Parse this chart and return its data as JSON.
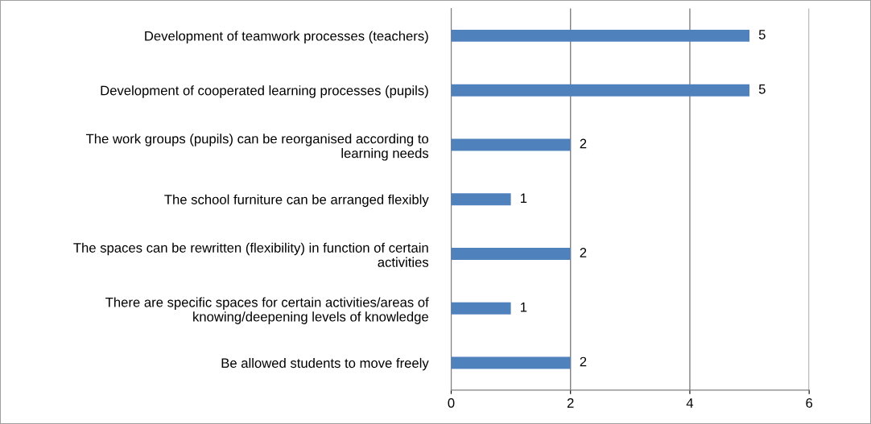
{
  "chart_data": {
    "type": "bar",
    "orientation": "horizontal",
    "categories": [
      "Development of teamwork processes (teachers)",
      "Development of cooperated learning processes (pupils)",
      "The work groups (pupils) can be reorganised according to\nlearning needs",
      "The school furniture can be arranged flexibly",
      "The spaces can be rewritten (flexibility) in function of certain\nactivities",
      "There are specific spaces for certain activities/areas of\nknowing/deepening levels of knowledge",
      "Be allowed students to move freely"
    ],
    "values": [
      5,
      5,
      2,
      1,
      2,
      1,
      2
    ],
    "color": "#4f81bd",
    "xlim": [
      0,
      6
    ],
    "xticks": [
      0,
      2,
      4,
      6
    ],
    "grid": "x",
    "data_labels": true,
    "legend": false
  }
}
